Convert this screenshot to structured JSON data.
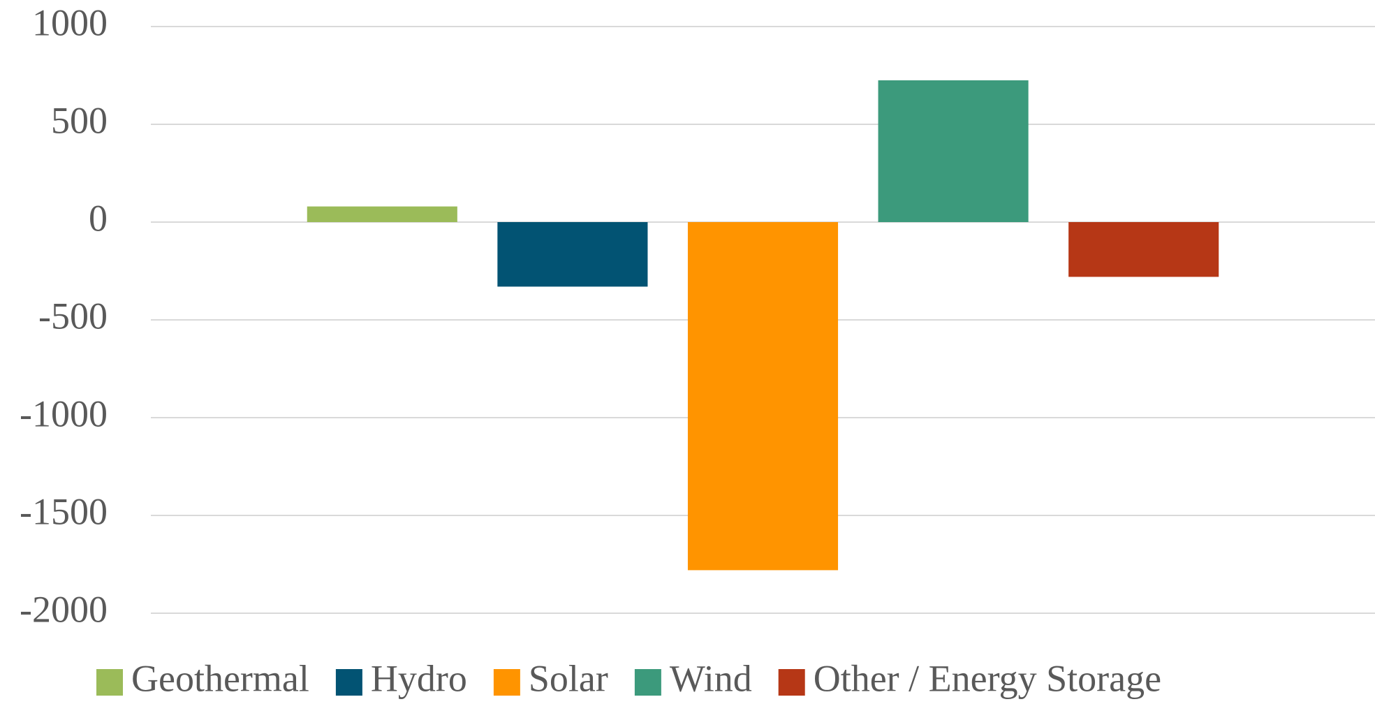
{
  "chart_data": {
    "type": "bar",
    "categories": [
      null
    ],
    "series": [
      {
        "name": "Geothermal",
        "color": "#9bbb59",
        "values": [
          80
        ]
      },
      {
        "name": "Hydro",
        "color": "#025373",
        "values": [
          -330
        ]
      },
      {
        "name": "Solar",
        "color": "#ff9400",
        "values": [
          -1780
        ]
      },
      {
        "name": "Wind",
        "color": "#3c9a7c",
        "values": [
          725
        ]
      },
      {
        "name": "Other / Energy Storage",
        "color": "#b63716",
        "values": [
          -280
        ]
      }
    ],
    "ylim": [
      -2000,
      1000
    ],
    "yticks": [
      -2000,
      -1500,
      -1000,
      -500,
      0,
      500,
      1000
    ],
    "grid": true,
    "legend": "bottom"
  }
}
